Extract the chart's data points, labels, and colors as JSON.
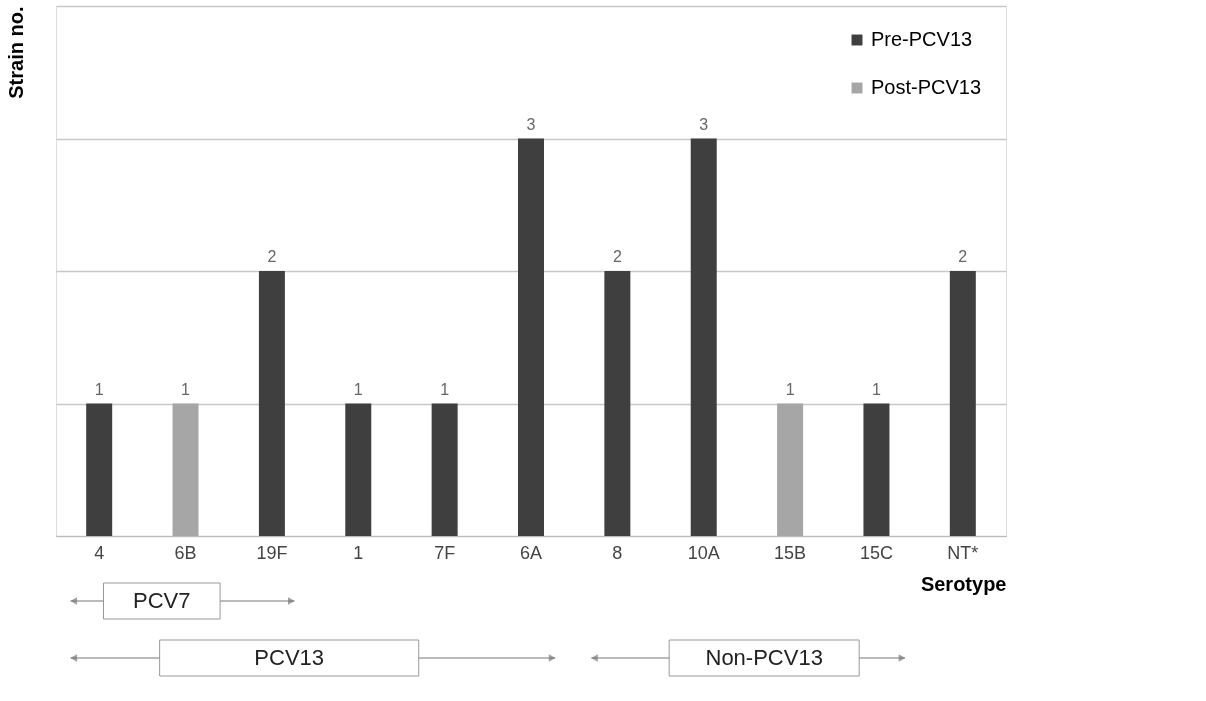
{
  "chart_data": {
    "type": "bar",
    "xlabel": "Serotype",
    "ylabel": "Strain no.",
    "categories": [
      "4",
      "6B",
      "19F",
      "1",
      "7F",
      "6A",
      "8",
      "10A",
      "15B",
      "15C",
      "NT*"
    ],
    "series": [
      {
        "name": "Pre-PCV13",
        "color": "#3f3f3f",
        "values": [
          1,
          null,
          2,
          1,
          1,
          3,
          2,
          3,
          null,
          1,
          2
        ]
      },
      {
        "name": "Post-PCV13",
        "color": "#a6a6a6",
        "values": [
          null,
          1,
          null,
          null,
          null,
          null,
          null,
          null,
          1,
          null,
          null
        ]
      }
    ],
    "ylim": [
      0,
      4
    ],
    "yticks": [
      {
        "value": 0,
        "label": null
      },
      {
        "value": 1,
        "label": null
      },
      {
        "value": 2,
        "label": null
      },
      {
        "value": 3,
        "label": null
      },
      {
        "value": 4,
        "label": null
      }
    ],
    "grid": "y",
    "legend": "top right",
    "tick_labels": "x",
    "data_labels": true,
    "annotations": [
      "PCV7",
      "PCV13",
      "Non-PCV13"
    ]
  }
}
